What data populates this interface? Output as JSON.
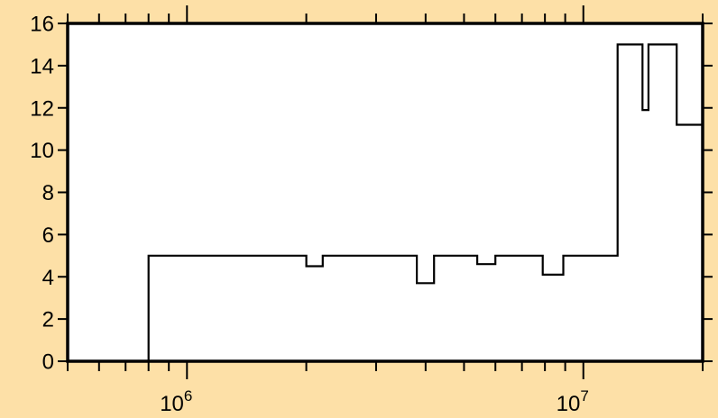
{
  "chart_data": {
    "type": "line",
    "step": true,
    "title": "",
    "xlabel": "",
    "ylabel": "",
    "xscale": "log",
    "xlim": [
      500000,
      20000000
    ],
    "ylim": [
      0,
      16
    ],
    "grid": false,
    "background": "#fde0a7",
    "plot_background": "#ffffff",
    "line_color": "#000000",
    "y_ticks": [
      {
        "value": 0,
        "label": "0"
      },
      {
        "value": 2,
        "label": "2"
      },
      {
        "value": 4,
        "label": "4"
      },
      {
        "value": 6,
        "label": "6"
      },
      {
        "value": 8,
        "label": "8"
      },
      {
        "value": 10,
        "label": "10"
      },
      {
        "value": 12,
        "label": "12"
      },
      {
        "value": 14,
        "label": "14"
      },
      {
        "value": 16,
        "label": "16"
      }
    ],
    "x_ticks": [
      {
        "value": 1000000,
        "base": "10",
        "exp": "6"
      },
      {
        "value": 10000000,
        "base": "10",
        "exp": "7"
      }
    ],
    "series": [
      {
        "x": [
          800000,
          800000,
          2000000,
          2000000,
          2200000,
          2200000,
          3800000,
          3800000,
          4200000,
          4200000,
          5400000,
          5400000,
          6000000,
          6000000,
          7900000,
          7900000,
          8900000,
          8900000,
          12200000,
          12200000,
          14100000,
          14100000,
          14600000,
          14600000,
          17200000,
          17200000,
          20000000
        ],
        "y": [
          0,
          5,
          5,
          4.5,
          4.5,
          5,
          5,
          3.7,
          3.7,
          5,
          5,
          4.6,
          4.6,
          5,
          5,
          4.1,
          4.1,
          5,
          5,
          15,
          15,
          11.9,
          11.9,
          15,
          15,
          11.2,
          11.2
        ]
      }
    ]
  }
}
